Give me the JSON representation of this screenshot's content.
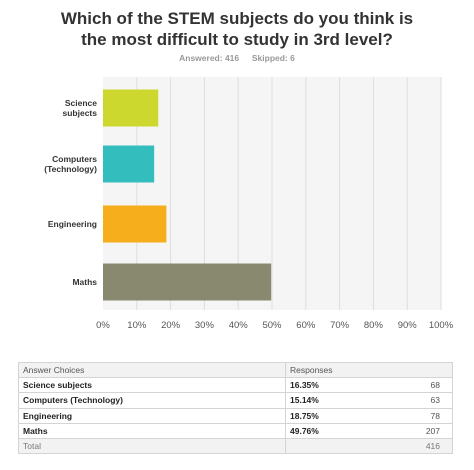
{
  "title_lines": [
    "Which of the STEM subjects do you think is",
    "the most difficult to study in 3rd level?"
  ],
  "answered_label": "Answered: 416",
  "skipped_label": "Skipped: 6",
  "chart_data": {
    "type": "bar",
    "orientation": "horizontal",
    "title": "Which of the STEM subjects do you think is the most difficult to study in 3rd level?",
    "categories": [
      [
        "Science",
        "subjects"
      ],
      [
        "Computers",
        "(Technology)"
      ],
      [
        "Engineering"
      ],
      [
        "Maths"
      ]
    ],
    "values": [
      16.35,
      15.14,
      18.75,
      49.76
    ],
    "colors": [
      "#cdd82e",
      "#33bdbc",
      "#f7ae1d",
      "#898970"
    ],
    "xlim": [
      0,
      100
    ],
    "xticks": [
      "0%",
      "10%",
      "20%",
      "30%",
      "40%",
      "50%",
      "60%",
      "70%",
      "80%",
      "90%",
      "100%"
    ],
    "grid": true,
    "background": "#f5f5f5"
  },
  "table": {
    "headers": [
      "Answer Choices",
      "Responses"
    ],
    "rows": [
      {
        "choice": "Science subjects",
        "percent": "16.35%",
        "count": "68"
      },
      {
        "choice": "Computers (Technology)",
        "percent": "15.14%",
        "count": "63"
      },
      {
        "choice": "Engineering",
        "percent": "18.75%",
        "count": "78"
      },
      {
        "choice": "Maths",
        "percent": "49.76%",
        "count": "207"
      }
    ],
    "total_label": "Total",
    "total_count": "416"
  }
}
